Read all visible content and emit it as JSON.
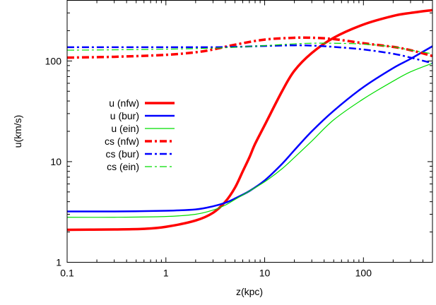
{
  "chart_data": {
    "type": "line",
    "xlabel": "z(kpc)",
    "ylabel": "u(km/s)",
    "x_scale": "log",
    "y_scale": "log",
    "xlim": [
      0.1,
      500
    ],
    "ylim": [
      1,
      400
    ],
    "x_ticks": [
      0.1,
      1,
      10,
      100
    ],
    "x_tick_labels": [
      "0.1",
      "1",
      "10",
      "100"
    ],
    "y_ticks": [
      1,
      10,
      100
    ],
    "y_tick_labels": [
      "1",
      "10",
      "100"
    ],
    "grid": false,
    "legend_position": "left",
    "series": [
      {
        "name": "u (nfw)",
        "color": "#ff0000",
        "dash": "solid",
        "width": 3.5,
        "x": [
          0.1,
          0.3,
          0.6,
          1,
          2,
          3,
          4,
          5,
          6,
          7,
          8,
          10,
          15,
          20,
          30,
          50,
          100,
          200,
          300,
          500
        ],
        "y": [
          2.1,
          2.12,
          2.15,
          2.25,
          2.6,
          3.1,
          4.0,
          5.5,
          8.0,
          11,
          15,
          23,
          50,
          80,
          120,
          170,
          230,
          280,
          300,
          320
        ]
      },
      {
        "name": "u (bur)",
        "color": "#0000ff",
        "dash": "solid",
        "width": 2.5,
        "x": [
          0.1,
          0.3,
          1,
          2,
          3,
          4,
          5,
          7,
          10,
          15,
          20,
          30,
          50,
          100,
          200,
          300,
          500
        ],
        "y": [
          3.2,
          3.2,
          3.25,
          3.35,
          3.6,
          3.9,
          4.3,
          5.1,
          6.5,
          9.5,
          13,
          20,
          32,
          55,
          85,
          105,
          140
        ]
      },
      {
        "name": "u (ein)",
        "color": "#00dd00",
        "dash": "solid",
        "width": 1.2,
        "x": [
          0.1,
          0.3,
          1,
          2,
          3,
          4,
          5,
          7,
          10,
          15,
          20,
          30,
          50,
          100,
          200,
          300,
          500
        ],
        "y": [
          2.8,
          2.8,
          2.85,
          3.0,
          3.3,
          3.7,
          4.2,
          5.1,
          6.3,
          8.5,
          11,
          16,
          26,
          42,
          63,
          78,
          95
        ]
      },
      {
        "name": "cs (nfw)",
        "color": "#ff0000",
        "dash": "dashdot",
        "width": 3.5,
        "x": [
          0.1,
          0.3,
          1,
          2,
          3,
          5,
          10,
          20,
          30,
          50,
          100,
          200,
          300,
          500
        ],
        "y": [
          108,
          110,
          115,
          122,
          130,
          145,
          163,
          170,
          170,
          165,
          150,
          138,
          128,
          112
        ]
      },
      {
        "name": "cs (bur)",
        "color": "#0000ff",
        "dash": "dashdot",
        "width": 2.5,
        "x": [
          0.1,
          0.3,
          1,
          3,
          5,
          10,
          20,
          30,
          50,
          100,
          200,
          300,
          500
        ],
        "y": [
          137,
          137,
          137,
          137,
          138,
          141,
          143,
          142,
          138,
          130,
          118,
          108,
          95
        ]
      },
      {
        "name": "cs (ein)",
        "color": "#00dd00",
        "dash": "dashdot",
        "width": 1.2,
        "x": [
          0.1,
          0.3,
          1,
          3,
          5,
          10,
          20,
          30,
          50,
          100,
          200,
          300,
          500
        ],
        "y": [
          128,
          129,
          131,
          134,
          137,
          142,
          148,
          150,
          150,
          147,
          138,
          128,
          118
        ]
      }
    ]
  }
}
